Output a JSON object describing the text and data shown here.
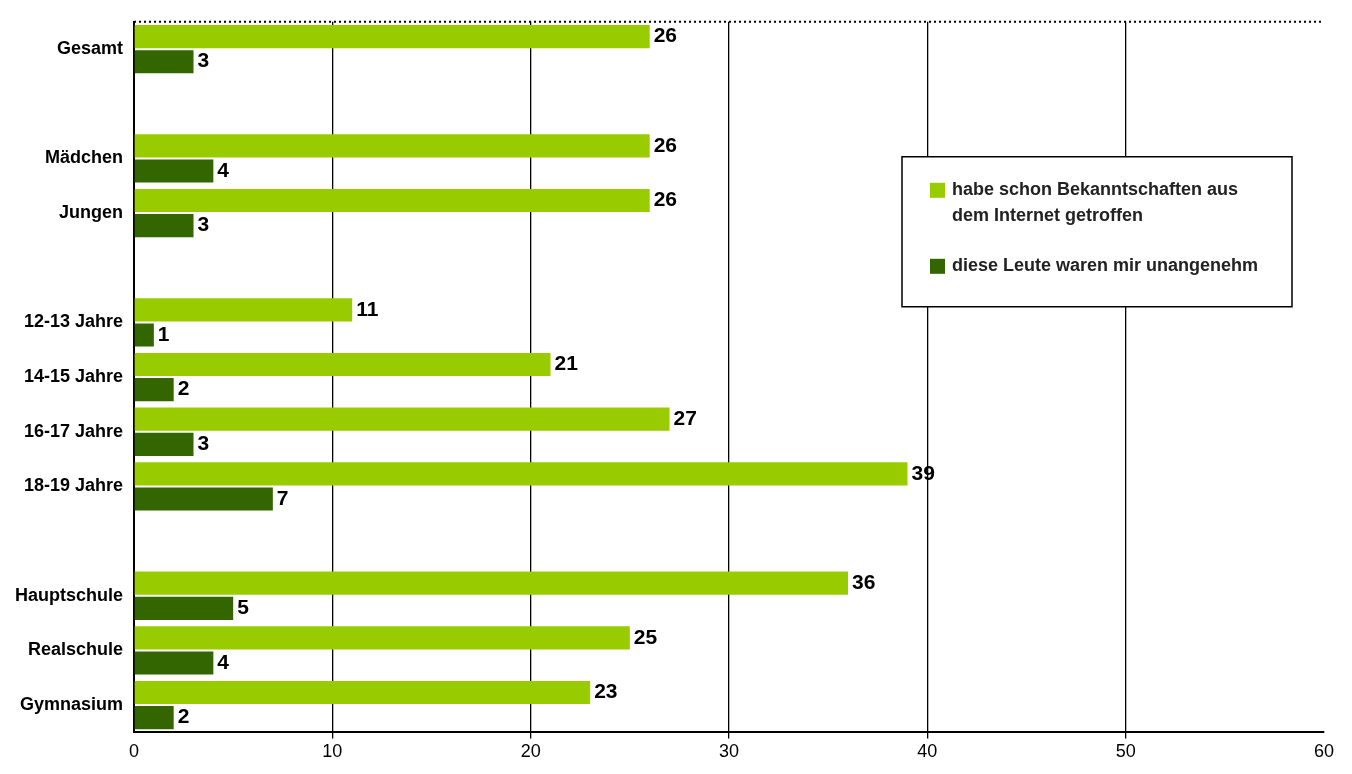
{
  "chart_data": {
    "type": "bar",
    "orientation": "horizontal",
    "categories": [
      "Gesamt",
      null,
      "Mädchen",
      "Jungen",
      null,
      "12-13 Jahre",
      "14-15 Jahre",
      "16-17 Jahre",
      "18-19 Jahre",
      null,
      "Hauptschule",
      "Realschule",
      "Gymnasium"
    ],
    "series": [
      {
        "name": "habe schon Bekanntschaften aus dem Internet getroffen",
        "color": "#99cc00",
        "values": [
          26,
          null,
          26,
          26,
          null,
          11,
          21,
          27,
          39,
          null,
          36,
          25,
          23
        ]
      },
      {
        "name": "diese Leute waren mir unangenehm",
        "color": "#336600",
        "values": [
          3,
          null,
          4,
          3,
          null,
          1,
          2,
          3,
          7,
          null,
          5,
          4,
          2
        ]
      }
    ],
    "xlim": [
      0,
      60
    ],
    "xticks": [
      0,
      10,
      20,
      30,
      40,
      50,
      60
    ],
    "grid": "x",
    "legend": "right",
    "data_labels": true
  }
}
